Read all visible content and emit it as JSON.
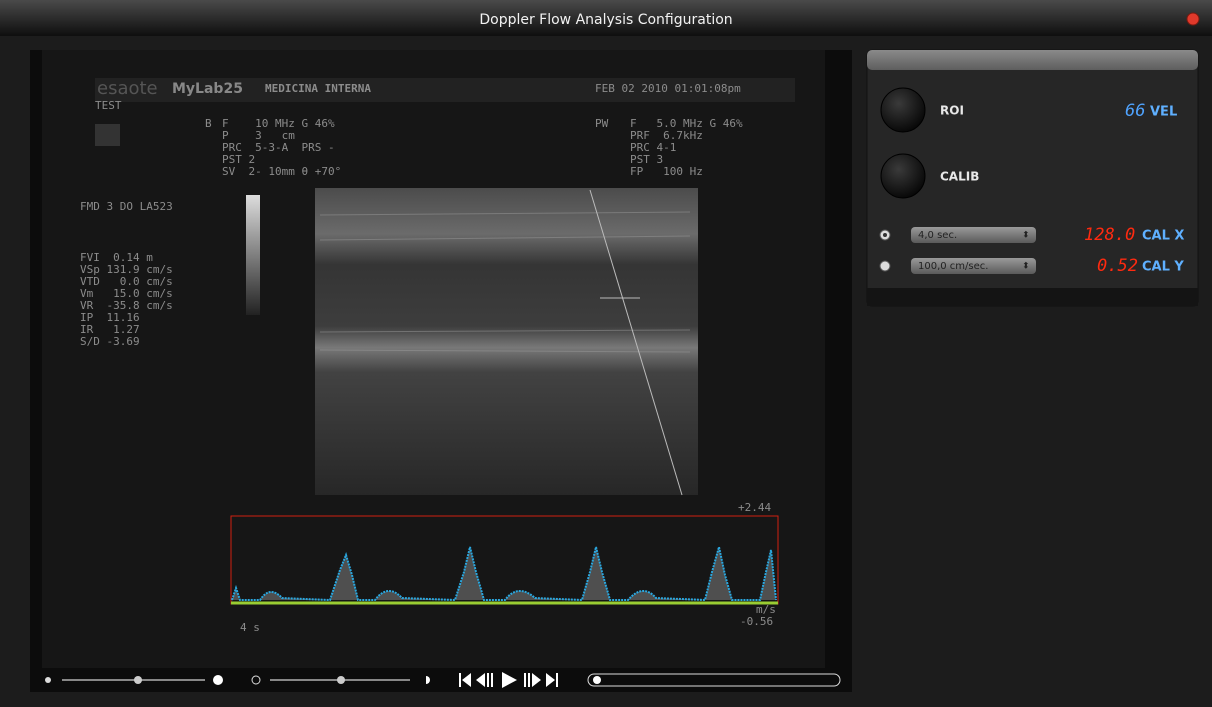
{
  "window": {
    "title": "Doppler Flow Analysis Configuration"
  },
  "scan": {
    "brand": "esaote",
    "model": "MyLab25",
    "department": "MEDICINA INTERNA",
    "datetime": "FEB 02 2010 01:01:08pm",
    "patient": "TEST",
    "b_mode": {
      "label": "B",
      "lines": [
        "F    10 MHz G 46%",
        "P    3   cm",
        "PRC  5-3-A  PRS -",
        "PST 2",
        "SV  2- 10mm θ +70°"
      ]
    },
    "pw_mode": {
      "label": "PW",
      "lines": [
        "F   5.0 MHz G 46%",
        "PRF  6.7kHz",
        "PRC 4-1",
        "PST 3",
        "FP   100 Hz"
      ]
    },
    "probe": "FMD 3 DO LA523",
    "measurements": [
      "FVI  0.14 m",
      "VSp 131.9 cm/s",
      "VTD   0.0 cm/s",
      "Vm   15.0 cm/s",
      "VR  -35.8 cm/s",
      "IP  11.16",
      "IR   1.27",
      "S/D -3.69"
    ],
    "doppler_scale": {
      "top": "+2.44",
      "unit": "m/s",
      "bottom": "-0.56",
      "time": "4 s"
    }
  },
  "panel": {
    "roi": {
      "label": "ROI",
      "value": "66",
      "unit": "VEL"
    },
    "calib": {
      "label": "CALIB"
    },
    "cal_x": {
      "option": "4,0 sec.",
      "value": "128.0",
      "label": "CAL X"
    },
    "cal_y": {
      "option": "100,0 cm/sec.",
      "value": "0.52",
      "label": "CAL Y"
    }
  }
}
